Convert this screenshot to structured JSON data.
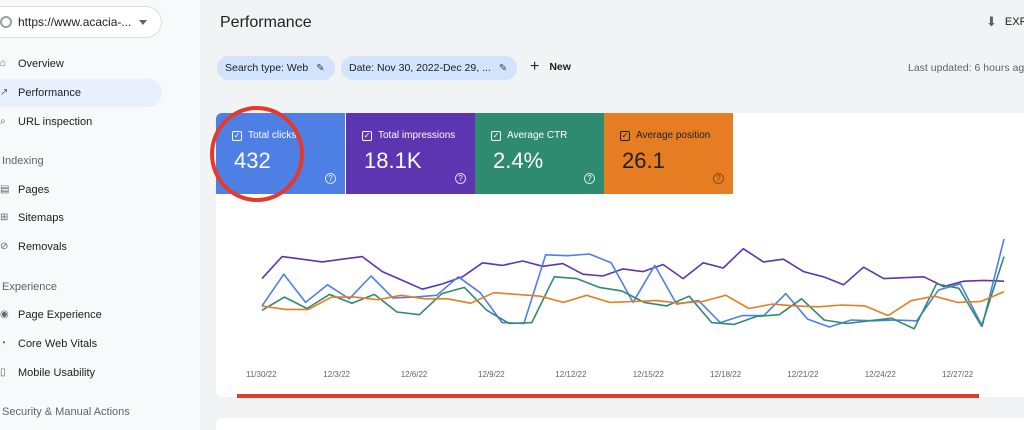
{
  "sidebar": {
    "property": "https://www.acacia-...",
    "items": [
      {
        "label": "Overview",
        "icon": "home-icon"
      },
      {
        "label": "Performance",
        "icon": "trending-up-icon"
      },
      {
        "label": "URL inspection",
        "icon": "search-icon"
      }
    ],
    "indexing": {
      "label": "Indexing",
      "items": [
        {
          "label": "Pages",
          "icon": "pages-icon"
        },
        {
          "label": "Sitemaps",
          "icon": "sitemap-icon"
        },
        {
          "label": "Removals",
          "icon": "removals-icon"
        }
      ]
    },
    "experience": {
      "label": "Experience",
      "items": [
        {
          "label": "Page Experience",
          "icon": "page-experience-icon"
        },
        {
          "label": "Core Web Vitals",
          "icon": "speedometer-icon"
        },
        {
          "label": "Mobile Usability",
          "icon": "phone-icon"
        }
      ]
    },
    "security": {
      "label": "Security & Manual Actions"
    }
  },
  "header": {
    "title": "Performance",
    "export_label": "EXP"
  },
  "filters": {
    "search_type": "Search type: Web",
    "date": "Date: Nov 30, 2022-Dec 29, ...",
    "new_label": "New",
    "last_updated": "Last updated: 6 hours ag"
  },
  "metrics": [
    {
      "label": "Total clicks",
      "value": "432",
      "color": "#4e7fe4"
    },
    {
      "label": "Total impressions",
      "value": "18.1K",
      "color": "#5e35b1"
    },
    {
      "label": "Average CTR",
      "value": "2.4%",
      "color": "#2e8b70"
    },
    {
      "label": "Average position",
      "value": "26.1",
      "color": "#e67d22"
    }
  ],
  "chart_data": {
    "type": "line",
    "x_ticks": [
      "11/30/22",
      "12/3/22",
      "12/6/22",
      "12/9/22",
      "12/12/22",
      "12/15/22",
      "12/18/22",
      "12/21/22",
      "12/24/22",
      "12/27/22"
    ],
    "series": [
      {
        "name": "Total impressions",
        "color": "#5e35b1",
        "values": [
          0.55,
          0.8,
          0.77,
          0.74,
          0.77,
          0.8,
          0.63,
          0.53,
          0.43,
          0.49,
          0.57,
          0.73,
          0.7,
          0.75,
          0.69,
          0.72,
          0.6,
          0.58,
          0.66,
          0.63,
          0.71,
          0.55,
          0.73,
          0.67,
          0.89,
          0.74,
          0.77,
          0.63,
          0.57,
          0.48,
          0.68,
          0.55,
          0.56,
          0.57,
          0.46,
          0.52,
          0.53,
          0.52
        ]
      },
      {
        "name": "Total clicks",
        "color": "#4e7fe4",
        "values": [
          0.24,
          0.6,
          0.28,
          0.48,
          0.32,
          0.58,
          0.33,
          0.34,
          0.36,
          0.57,
          0.39,
          0.05,
          0.04,
          0.82,
          0.81,
          0.83,
          0.73,
          0.28,
          0.7,
          0.26,
          0.3,
          0.05,
          0.13,
          0.13,
          0.38,
          0.09,
          0.0,
          0.08,
          0.07,
          0.08,
          0.07,
          0.42,
          0.49,
          0.01,
          1.0
        ]
      },
      {
        "name": "Average CTR",
        "color": "#2e8b70",
        "values": [
          0.19,
          0.34,
          0.21,
          0.37,
          0.27,
          0.37,
          0.17,
          0.14,
          0.38,
          0.45,
          0.19,
          0.04,
          0.05,
          0.57,
          0.55,
          0.45,
          0.41,
          0.28,
          0.24,
          0.35,
          0.05,
          0.03,
          0.12,
          0.14,
          0.32,
          0.08,
          0.04,
          0.07,
          0.1,
          -0.02,
          0.49,
          0.44,
          0.01,
          0.8
        ]
      },
      {
        "name": "Average position",
        "color": "#e67d22",
        "values": [
          0.24,
          0.2,
          0.2,
          0.34,
          0.34,
          0.31,
          0.36,
          0.32,
          0.32,
          0.27,
          0.39,
          0.37,
          0.35,
          0.28,
          0.36,
          0.28,
          0.29,
          0.3,
          0.27,
          0.29,
          0.36,
          0.21,
          0.26,
          0.24,
          0.23,
          0.25,
          0.24,
          0.13,
          0.3,
          0.35,
          0.28,
          0.29,
          0.4
        ]
      }
    ]
  }
}
